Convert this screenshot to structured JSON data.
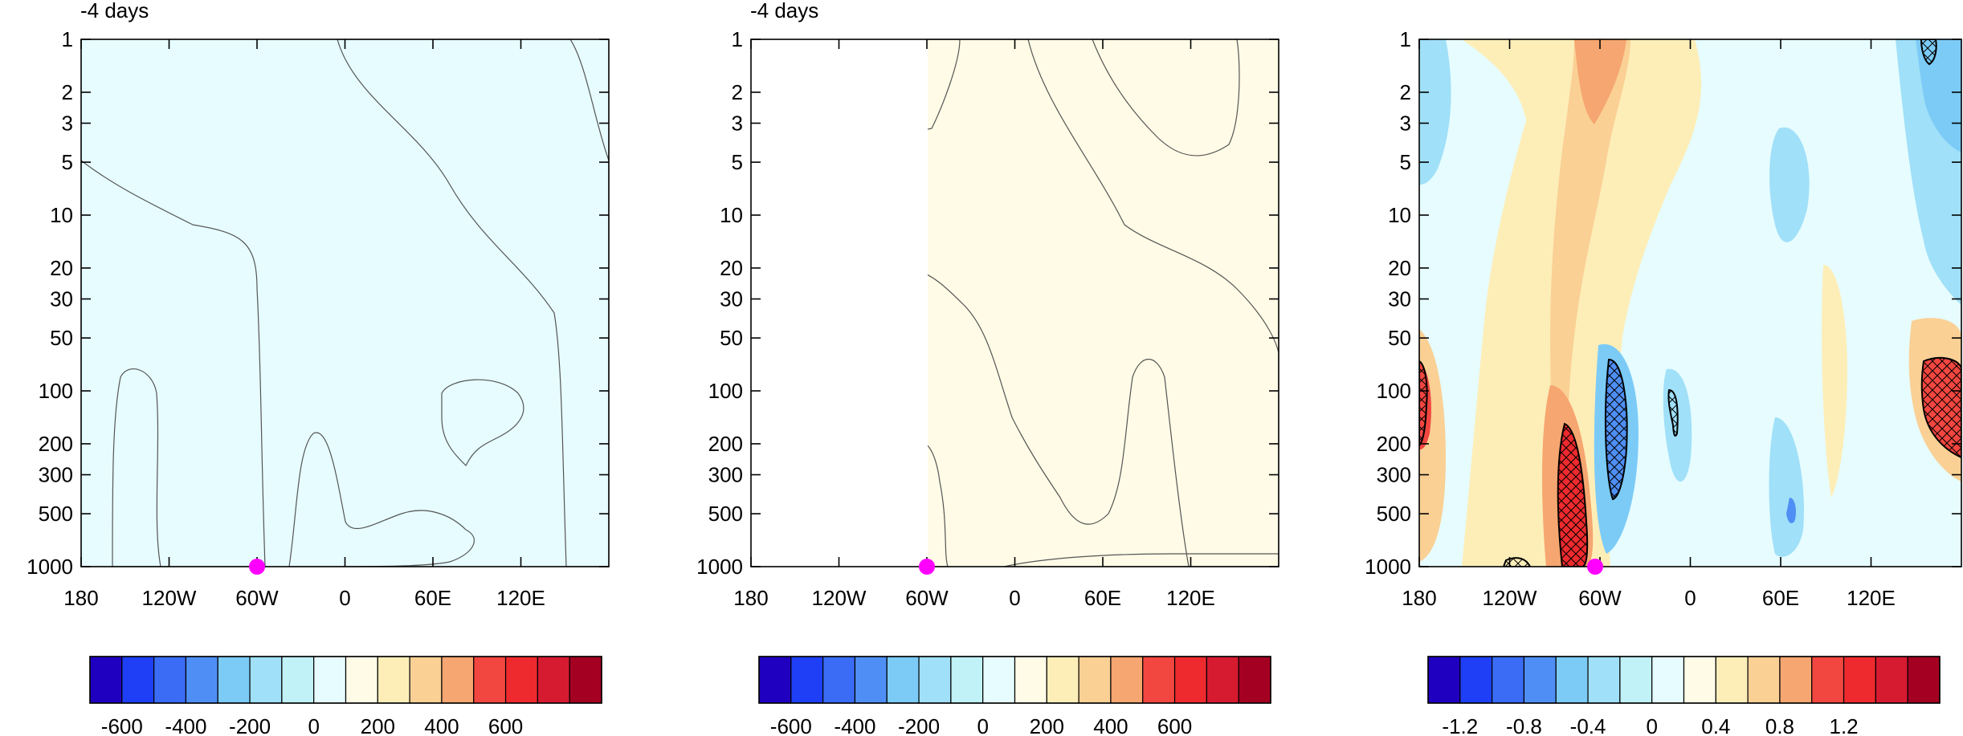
{
  "colors": {
    "palette": [
      "#2000c0",
      "#1e3ff5",
      "#3a6cf5",
      "#4f8ff5",
      "#7ccbf7",
      "#a0e0f8",
      "#c0f2f8",
      "#e6fcff",
      "#fffbe6",
      "#fdeeb8",
      "#fad095",
      "#f6a670",
      "#f24640",
      "#ee2a2e",
      "#d61a30",
      "#a40022"
    ],
    "marker": "#ff00ff"
  },
  "chart_data": [
    {
      "type": "heatmap",
      "panel": 1,
      "title": "-4 days",
      "x_ticks": [
        "180",
        "120W",
        "60W",
        "0",
        "60E",
        "120E"
      ],
      "y_ticks": [
        "1",
        "2",
        "3",
        "5",
        "10",
        "20",
        "30",
        "50",
        "100",
        "200",
        "300",
        "500",
        "1000"
      ],
      "x_range": [
        -180,
        180
      ],
      "y_range": [
        1000,
        1
      ],
      "y_scale": "log",
      "colorbar_labels": [
        "-600",
        "-400",
        "-200",
        "0",
        "200",
        "400",
        "600"
      ],
      "colorbar_levels": [
        -700,
        -600,
        -500,
        -400,
        -300,
        -200,
        -100,
        0,
        100,
        200,
        300,
        400,
        500,
        600,
        700
      ],
      "marker": {
        "lon": -60,
        "p": 1000
      }
    },
    {
      "type": "heatmap",
      "panel": 2,
      "title": "-4 days",
      "x_ticks": [
        "180",
        "120W",
        "60W",
        "0",
        "60E",
        "120E"
      ],
      "y_ticks": [
        "1",
        "2",
        "3",
        "5",
        "10",
        "20",
        "30",
        "50",
        "100",
        "200",
        "300",
        "500",
        "1000"
      ],
      "x_range": [
        -180,
        180
      ],
      "y_range": [
        1000,
        1
      ],
      "y_scale": "log",
      "colorbar_labels": [
        "-600",
        "-400",
        "-200",
        "0",
        "200",
        "400",
        "600"
      ],
      "colorbar_levels": [
        -700,
        -600,
        -500,
        -400,
        -300,
        -200,
        -100,
        0,
        100,
        200,
        300,
        400,
        500,
        600,
        700
      ],
      "marker": {
        "lon": -60,
        "p": 1000
      }
    },
    {
      "type": "heatmap",
      "panel": 3,
      "title": "",
      "x_ticks": [
        "180",
        "120W",
        "60W",
        "0",
        "60E",
        "120E"
      ],
      "y_ticks": [
        "1",
        "2",
        "3",
        "5",
        "10",
        "20",
        "30",
        "50",
        "100",
        "200",
        "300",
        "500",
        "1000"
      ],
      "x_range": [
        -180,
        180
      ],
      "y_range": [
        1000,
        1
      ],
      "y_scale": "log",
      "colorbar_labels": [
        "-1.2",
        "-0.8",
        "-0.4",
        "0",
        "0.4",
        "0.8",
        "1.2"
      ],
      "colorbar_levels": [
        -1.4,
        -1.2,
        -1.0,
        -0.8,
        -0.6,
        -0.4,
        -0.2,
        0,
        0.2,
        0.4,
        0.6,
        0.8,
        1.0,
        1.2,
        1.4
      ],
      "marker": {
        "lon": -60,
        "p": 1000
      },
      "significance": "hatched"
    }
  ]
}
